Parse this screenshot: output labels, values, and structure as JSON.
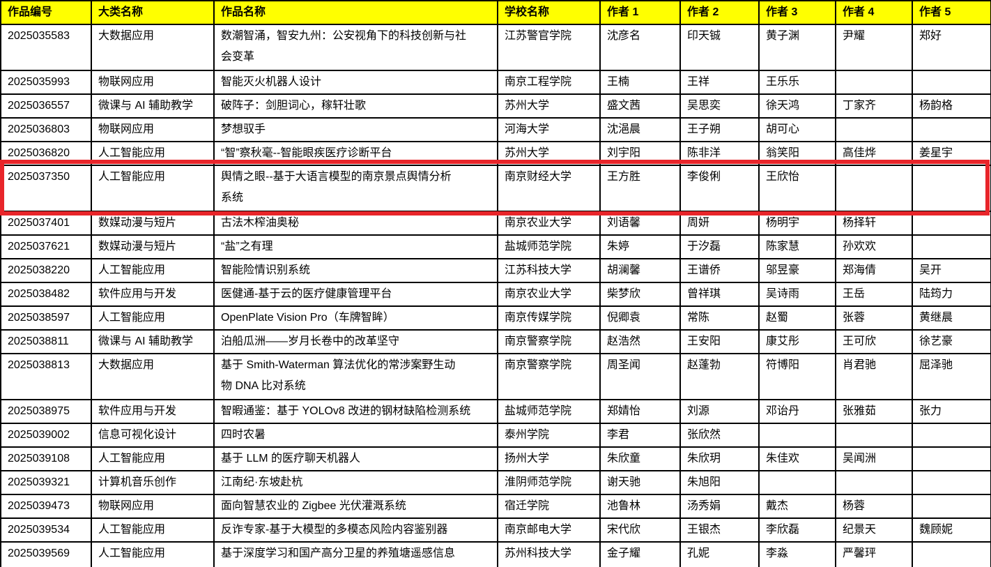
{
  "colors": {
    "header_bg": "#ffff00",
    "highlight_border": "#e8252a",
    "table_border": "#000000"
  },
  "highlight": {
    "work_id": "2025037350"
  },
  "table": {
    "headers": [
      "作品编号",
      "大类名称",
      "作品名称",
      "学校名称",
      "作者 1",
      "作者 2",
      "作者 3",
      "作者 4",
      "作者 5"
    ],
    "rows": [
      {
        "id": "2025035583",
        "category": "大数据应用",
        "title": "数潮智涌，智安九州：公安视角下的科技创新与社\n会变革",
        "school": "江苏警官学院",
        "authors": [
          "沈彦名",
          "印天铖",
          "黄子渊",
          "尹耀",
          "郑好"
        ]
      },
      {
        "id": "2025035993",
        "category": "物联网应用",
        "title": "智能灭火机器人设计",
        "school": "南京工程学院",
        "authors": [
          "王楠",
          "王祥",
          "王乐乐",
          "",
          ""
        ]
      },
      {
        "id": "2025036557",
        "category": "微课与 AI 辅助教学",
        "title": "破阵子：剑胆词心，稼轩壮歌",
        "school": "苏州大学",
        "authors": [
          "盛文茜",
          "吴思奕",
          "徐天鸿",
          "丁家齐",
          "杨韵格"
        ]
      },
      {
        "id": "2025036803",
        "category": "物联网应用",
        "title": "梦想驭手",
        "school": "河海大学",
        "authors": [
          "沈浥晨",
          "王子朔",
          "胡可心",
          "",
          ""
        ]
      },
      {
        "id": "2025036820",
        "category": "人工智能应用",
        "title": "“智”察秋毫--智能眼疾医疗诊断平台",
        "school": "苏州大学",
        "authors": [
          "刘宇阳",
          "陈非洋",
          "翁笑阳",
          "高佳烨",
          "姜星宇"
        ]
      },
      {
        "id": "2025037350",
        "category": "人工智能应用",
        "title": "舆情之眼--基于大语言模型的南京景点舆情分析\n系统",
        "school": "南京财经大学",
        "authors": [
          "王方胜",
          "李俊俐",
          "王欣怡",
          "",
          ""
        ]
      },
      {
        "id": "2025037401",
        "category": "数媒动漫与短片",
        "title": "古法木榨油奥秘",
        "school": "南京农业大学",
        "authors": [
          "刘语馨",
          "周妍",
          "杨明宇",
          "杨择轩",
          ""
        ]
      },
      {
        "id": "2025037621",
        "category": "数媒动漫与短片",
        "title": "“盐”之有理",
        "school": "盐城师范学院",
        "authors": [
          "朱婷",
          "于汐磊",
          "陈家慧",
          "孙欢欢",
          ""
        ]
      },
      {
        "id": "2025038220",
        "category": "人工智能应用",
        "title": "智能险情识别系统",
        "school": "江苏科技大学",
        "authors": [
          "胡澜馨",
          "王谱侨",
          "邬昱豪",
          "郑海倩",
          "吴开"
        ]
      },
      {
        "id": "2025038482",
        "category": "软件应用与开发",
        "title": "医健通-基于云的医疗健康管理平台",
        "school": "南京农业大学",
        "authors": [
          "柴梦欣",
          "曾祥琪",
          "吴诗雨",
          "王岳",
          "陆筠力"
        ]
      },
      {
        "id": "2025038597",
        "category": "人工智能应用",
        "title": "OpenPlate Vision Pro（车牌智眸）",
        "school": "南京传媒学院",
        "authors": [
          "倪卿袁",
          "常陈",
          "赵蜀",
          "张蓉",
          "黄继晨"
        ]
      },
      {
        "id": "2025038811",
        "category": "微课与 AI 辅助教学",
        "title": "泊船瓜洲——岁月长卷中的改革坚守",
        "school": "南京警察学院",
        "authors": [
          "赵浩然",
          "王安阳",
          "康艾彤",
          "王可欣",
          "徐艺豪"
        ]
      },
      {
        "id": "2025038813",
        "category": "大数据应用",
        "title": "基于 Smith-Waterman 算法优化的常涉案野生动\n物 DNA 比对系统",
        "school": "南京警察学院",
        "authors": [
          "周圣闻",
          "赵蓬勃",
          "符博阳",
          "肖君驰",
          "屈泽驰"
        ]
      },
      {
        "id": "2025038975",
        "category": "软件应用与开发",
        "title": "智暇通鉴：基于 YOLOv8 改进的钢材缺陷检测系统",
        "school": "盐城师范学院",
        "authors": [
          "郑婧怡",
          "刘源",
          "邓诒丹",
          "张雅茹",
          "张力"
        ]
      },
      {
        "id": "2025039002",
        "category": "信息可视化设计",
        "title": "四时农暑",
        "school": "泰州学院",
        "authors": [
          "李君",
          "张欣然",
          "",
          "",
          ""
        ]
      },
      {
        "id": "2025039108",
        "category": "人工智能应用",
        "title": "基于 LLM 的医疗聊天机器人",
        "school": "扬州大学",
        "authors": [
          "朱欣童",
          "朱欣玥",
          "朱佳欢",
          "吴闻洲",
          ""
        ]
      },
      {
        "id": "2025039321",
        "category": "计算机音乐创作",
        "title": "江南纪·东坡赴杭",
        "school": "淮阴师范学院",
        "authors": [
          "谢天驰",
          "朱旭阳",
          "",
          "",
          ""
        ]
      },
      {
        "id": "2025039473",
        "category": "物联网应用",
        "title": "面向智慧农业的 Zigbee 光伏灌溉系统",
        "school": "宿迁学院",
        "authors": [
          "池鲁林",
          "汤秀娟",
          "戴杰",
          "杨蓉",
          ""
        ]
      },
      {
        "id": "2025039534",
        "category": "人工智能应用",
        "title": "反诈专家-基于大模型的多模态风险内容鉴别器",
        "school": "南京邮电大学",
        "authors": [
          "宋代欣",
          "王银杰",
          "李欣磊",
          "纪景天",
          "魏顾妮"
        ]
      },
      {
        "id": "2025039569",
        "category": "人工智能应用",
        "title": "基于深度学习和国产高分卫星的养殖塘遥感信息\n提取",
        "school": "苏州科技大学",
        "authors": [
          "金子耀",
          "孔妮",
          "李淼",
          "严馨玶",
          ""
        ]
      }
    ]
  }
}
